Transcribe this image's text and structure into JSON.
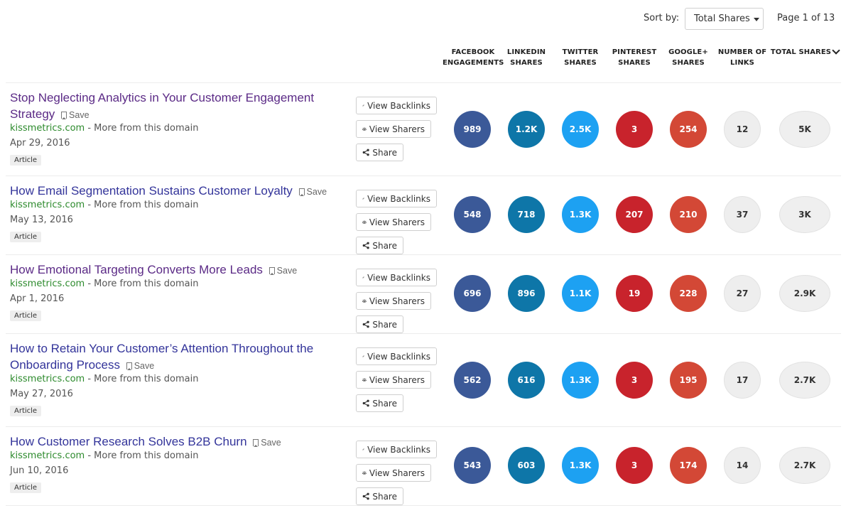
{
  "toolbar": {
    "sort_label": "Sort by:",
    "sort_value": "Total Shares",
    "page_info": "Page 1 of 13"
  },
  "columns": {
    "facebook": "FACEBOOK ENGAGEMENTS",
    "linkedin": "LINKEDIN SHARES",
    "twitter": "TWITTER SHARES",
    "pinterest": "PINTEREST SHARES",
    "google": "GOOGLE+ SHARES",
    "links": "NUMBER OF LINKS",
    "total": "TOTAL SHARES"
  },
  "colors": {
    "facebook": "#3b5998",
    "linkedin": "#0e76a8",
    "twitter": "#1da1f2",
    "pinterest": "#c8232c",
    "google": "#d34836"
  },
  "buttons": {
    "view_backlinks": "View Backlinks",
    "view_sharers": "View Sharers",
    "share": "Share",
    "save": "Save",
    "more_from_domain": " - More from this domain"
  },
  "articles": [
    {
      "title": "Stop Neglecting Analytics in Your Customer Engagement Strategy",
      "domain": "kissmetrics.com",
      "date": "Apr 29, 2016",
      "tag": "Article",
      "facebook": "989",
      "linkedin": "1.2K",
      "twitter": "2.5K",
      "pinterest": "3",
      "google": "254",
      "links": "12",
      "total": "5K"
    },
    {
      "title": "How Email Segmentation Sustains Customer Loyalty",
      "domain": "kissmetrics.com",
      "date": "May 13, 2016",
      "tag": "Article",
      "facebook": "548",
      "linkedin": "718",
      "twitter": "1.3K",
      "pinterest": "207",
      "google": "210",
      "links": "37",
      "total": "3K"
    },
    {
      "title": "How Emotional Targeting Converts More Leads",
      "domain": "kissmetrics.com",
      "date": "Apr 1, 2016",
      "tag": "Article",
      "facebook": "696",
      "linkedin": "896",
      "twitter": "1.1K",
      "pinterest": "19",
      "google": "228",
      "links": "27",
      "total": "2.9K"
    },
    {
      "title": "How to Retain Your Customer’s Attention Throughout the Onboarding Process",
      "domain": "kissmetrics.com",
      "date": "May 27, 2016",
      "tag": "Article",
      "facebook": "562",
      "linkedin": "616",
      "twitter": "1.3K",
      "pinterest": "3",
      "google": "195",
      "links": "17",
      "total": "2.7K"
    },
    {
      "title": "How Customer Research Solves B2B Churn",
      "domain": "kissmetrics.com",
      "date": "Jun 10, 2016",
      "tag": "Article",
      "facebook": "543",
      "linkedin": "603",
      "twitter": "1.3K",
      "pinterest": "3",
      "google": "174",
      "links": "14",
      "total": "2.7K"
    }
  ]
}
